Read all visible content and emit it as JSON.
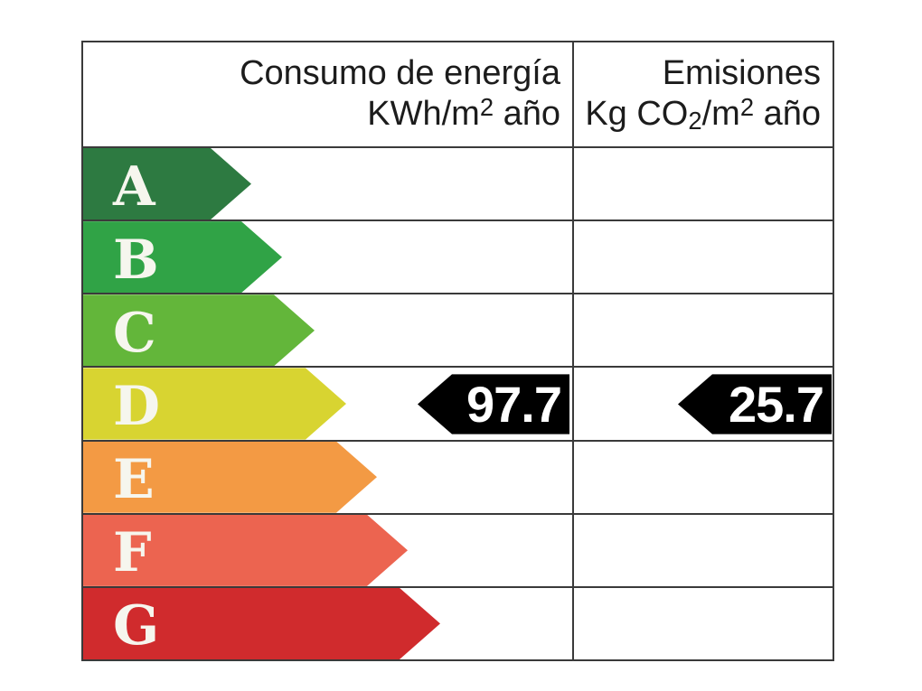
{
  "chart_data": {
    "type": "bar",
    "categories": [
      "A",
      "B",
      "C",
      "D",
      "E",
      "F",
      "G"
    ],
    "category_colors": [
      "#2d7a41",
      "#30a346",
      "#63b63a",
      "#d8d431",
      "#f39a44",
      "#ec6450",
      "#d02b2d"
    ],
    "columns": [
      {
        "label": "Consumo de energía KWh/m2 año",
        "value": 97.7,
        "value_rating": "D"
      },
      {
        "label": "Emisiones Kg CO2/m2 año",
        "value": 25.7,
        "value_rating": "D"
      }
    ],
    "selected_rating": "D",
    "legend_position": "none",
    "grid": "table-lines"
  },
  "header": {
    "consumo": {
      "title": "Consumo de energía",
      "unit_prefix": "KWh/m",
      "unit_sup": "2",
      "unit_suffix": " año"
    },
    "emisiones": {
      "title": "Emisiones",
      "unit_prefix": "Kg CO",
      "unit_sub": "2",
      "unit_mid": "/m",
      "unit_sup": "2",
      "unit_suffix": " año"
    }
  },
  "ratings": [
    {
      "letter": "A",
      "color": "#2d7a41"
    },
    {
      "letter": "B",
      "color": "#30a346"
    },
    {
      "letter": "C",
      "color": "#63b63a"
    },
    {
      "letter": "D",
      "color": "#d8d431"
    },
    {
      "letter": "E",
      "color": "#f39a44"
    },
    {
      "letter": "F",
      "color": "#ec6450"
    },
    {
      "letter": "G",
      "color": "#d02b2d"
    }
  ],
  "result": {
    "rating": "D",
    "consumption_value": "97.7",
    "emissions_value": "25.7",
    "marker_color": "#000000",
    "value_color": "#ffffff"
  },
  "style": {
    "grid_line_color": "#3a3a3a",
    "letter_color": "#f6f6ee",
    "header_text_color": "#1c1c1c",
    "background": "#ffffff"
  }
}
